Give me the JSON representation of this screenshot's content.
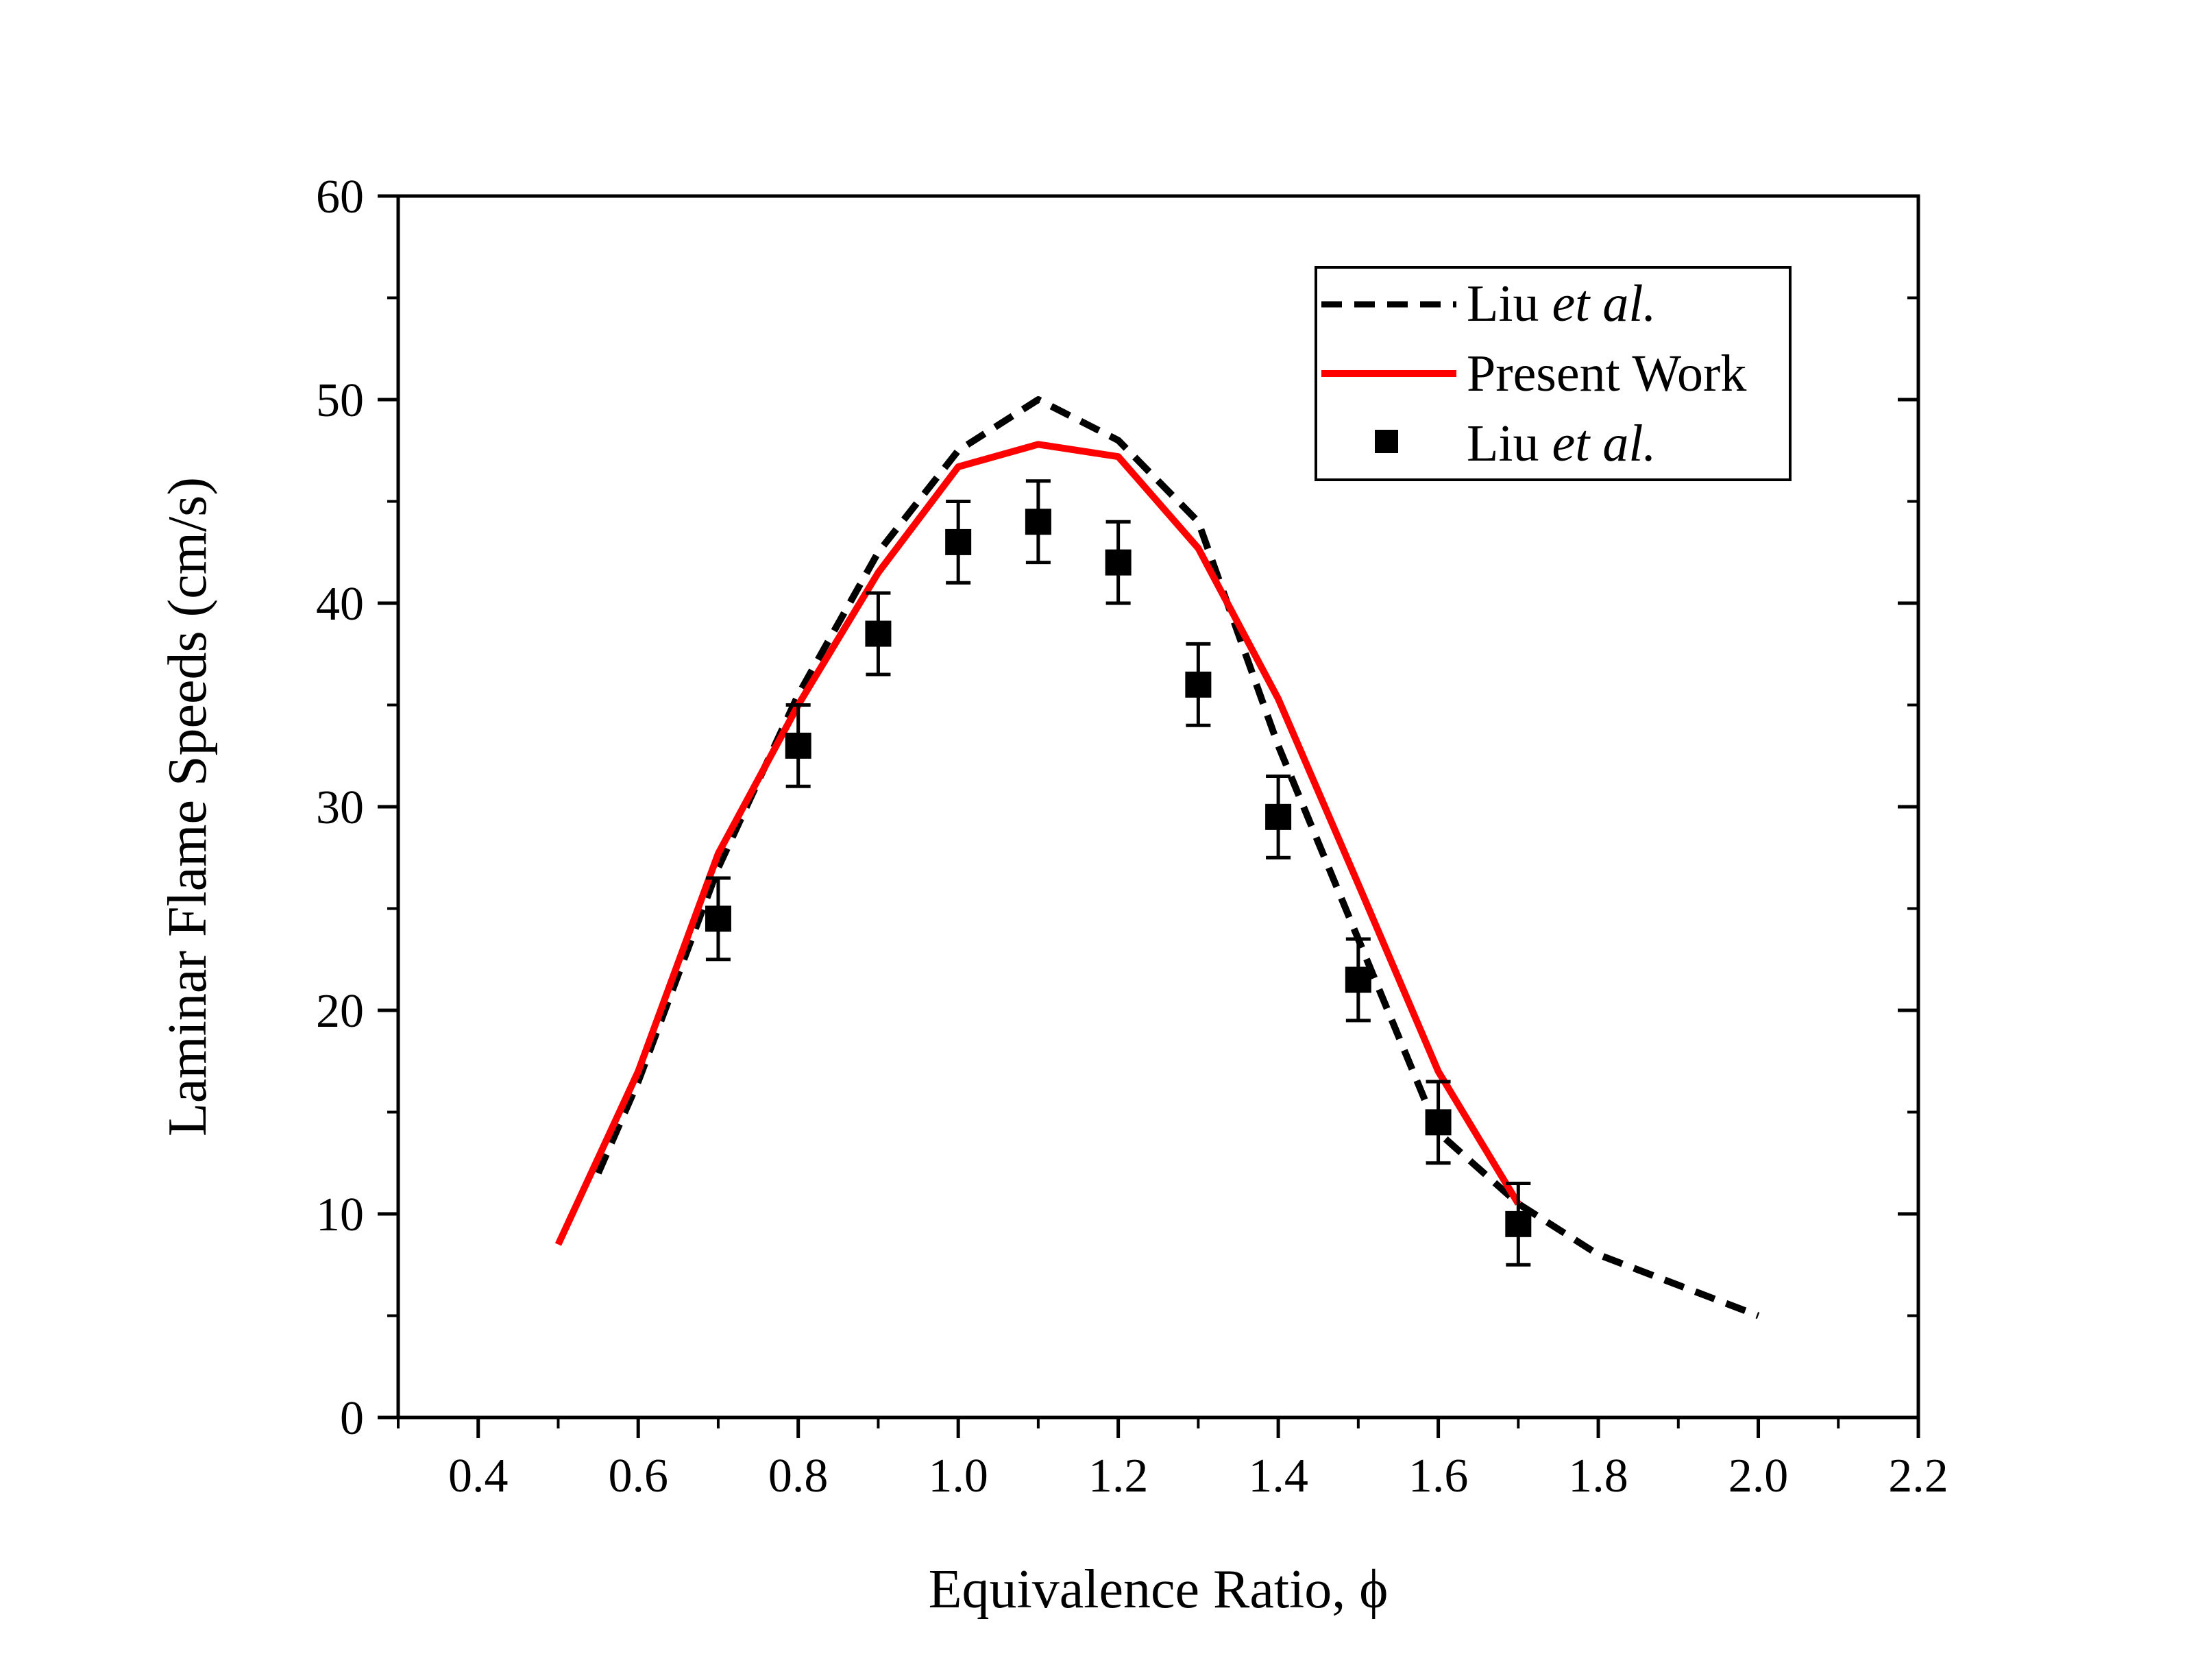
{
  "chart_data": {
    "type": "line",
    "xlabel": "Equivalence Ratio, ϕ",
    "ylabel": "Laminar Flame Speeds (cm/s)",
    "xlim": [
      0.3,
      2.2
    ],
    "ylim": [
      0,
      60
    ],
    "xticks": [
      0.4,
      0.6,
      0.8,
      1.0,
      1.2,
      1.4,
      1.6,
      1.8,
      2.0,
      2.2
    ],
    "xtick_labels": [
      "0.4",
      "0.6",
      "0.8",
      "1.0",
      "1.2",
      "1.4",
      "1.6",
      "1.8",
      "2.0",
      "2.2"
    ],
    "yticks": [
      0,
      10,
      20,
      30,
      40,
      50,
      60
    ],
    "ytick_labels": [
      "0",
      "10",
      "20",
      "30",
      "40",
      "50",
      "60"
    ],
    "grid": false,
    "legend_position": "top-right",
    "series": [
      {
        "name_plain": "Liu ",
        "name_italic": "et al.",
        "style": "dashed",
        "color": "#000000",
        "x": [
          0.55,
          0.6,
          0.7,
          0.8,
          0.9,
          1.0,
          1.1,
          1.2,
          1.3,
          1.4,
          1.5,
          1.6,
          1.7,
          1.8,
          1.9,
          2.0
        ],
        "y": [
          12.0,
          16.5,
          27.0,
          35.5,
          42.5,
          47.5,
          50.0,
          48.0,
          44.0,
          33.0,
          23.5,
          14.0,
          10.5,
          8.0,
          6.5,
          5.0
        ]
      },
      {
        "name": "Present Work",
        "style": "solid",
        "color": "#ff0000",
        "x": [
          0.5,
          0.6,
          0.7,
          0.8,
          0.9,
          1.0,
          1.1,
          1.2,
          1.3,
          1.4,
          1.5,
          1.6,
          1.7
        ],
        "y": [
          8.5,
          17.0,
          27.7,
          35.0,
          41.5,
          46.7,
          47.8,
          47.2,
          42.7,
          35.3,
          26.2,
          17.0,
          10.5
        ]
      },
      {
        "name_plain": "Liu ",
        "name_italic": "et al.",
        "style": "markers",
        "marker": "square",
        "color": "#000000",
        "x": [
          0.7,
          0.8,
          0.9,
          1.0,
          1.1,
          1.2,
          1.3,
          1.4,
          1.5,
          1.6,
          1.7
        ],
        "y": [
          24.5,
          33.0,
          38.5,
          43.0,
          44.0,
          42.0,
          36.0,
          29.5,
          21.5,
          14.5,
          9.5
        ],
        "error": [
          2,
          2,
          2,
          2,
          2,
          2,
          2,
          2,
          2,
          2,
          2
        ]
      }
    ]
  }
}
